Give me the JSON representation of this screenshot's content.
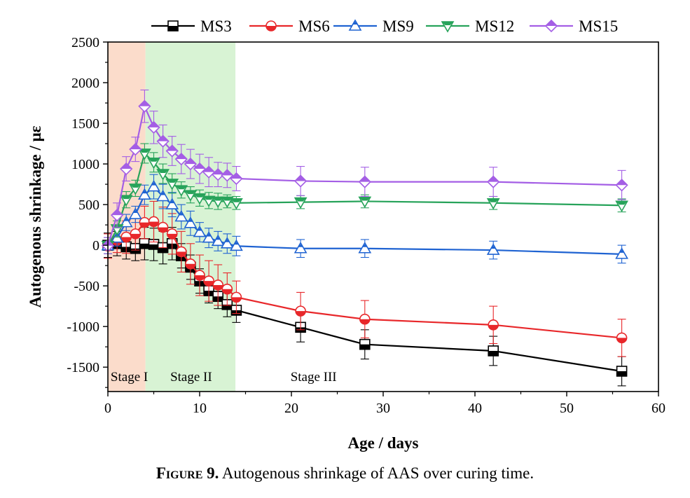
{
  "caption": {
    "label": "Figure 9.",
    "text": "Autogenous shrinkage of AAS over curing time."
  },
  "chart_data": {
    "type": "line",
    "xlabel": "Age / days",
    "ylabel": "Autogenous shrinkage / με",
    "xlim": [
      0,
      60
    ],
    "ylim": [
      -1800,
      2500
    ],
    "xticks": [
      0,
      10,
      20,
      30,
      40,
      50,
      60
    ],
    "yticks": [
      -1500,
      -1000,
      -500,
      0,
      500,
      1000,
      1500,
      2000,
      2500
    ],
    "grid": false,
    "legend_position": "top",
    "stages": [
      {
        "label": "Stage I",
        "x_range": [
          0,
          4.1
        ],
        "color": "#fbdccb"
      },
      {
        "label": "Stage II",
        "x_range": [
          4.1,
          13.9
        ],
        "color": "#d8f3d4"
      },
      {
        "label": "Stage III",
        "x_range": [
          13.9,
          60
        ],
        "color": "none"
      }
    ],
    "x": [
      0,
      1,
      2,
      3,
      4,
      5,
      6,
      7,
      8,
      9,
      10,
      11,
      12,
      13,
      14,
      21,
      28,
      42,
      56
    ],
    "series": [
      {
        "name": "MS3",
        "color": "#000000",
        "marker": "square",
        "values": [
          0,
          20,
          -20,
          -40,
          20,
          10,
          -30,
          20,
          -130,
          -270,
          -440,
          -560,
          -630,
          -730,
          -800,
          -1010,
          -1220,
          -1300,
          -1550
        ],
        "errors": [
          150,
          150,
          150,
          150,
          200,
          200,
          200,
          200,
          150,
          150,
          150,
          150,
          150,
          150,
          150,
          180,
          180,
          180,
          180
        ]
      },
      {
        "name": "MS6",
        "color": "#e8272a",
        "marker": "circle",
        "values": [
          -10,
          60,
          100,
          140,
          280,
          290,
          220,
          140,
          -80,
          -230,
          -370,
          -440,
          -490,
          -540,
          -640,
          -810,
          -910,
          -980,
          -1140
        ],
        "errors": [
          150,
          150,
          200,
          200,
          200,
          250,
          250,
          250,
          250,
          250,
          250,
          250,
          250,
          200,
          200,
          230,
          230,
          230,
          230
        ]
      },
      {
        "name": "MS9",
        "color": "#1f63d2",
        "marker": "triangle-up",
        "values": [
          -5,
          90,
          280,
          380,
          620,
          720,
          600,
          500,
          350,
          270,
          160,
          90,
          50,
          20,
          -10,
          -40,
          -40,
          -60,
          -110
        ],
        "errors": [
          100,
          100,
          100,
          100,
          120,
          150,
          150,
          150,
          150,
          150,
          120,
          120,
          120,
          120,
          120,
          110,
          110,
          110,
          110
        ]
      },
      {
        "name": "MS12",
        "color": "#27a35a",
        "marker": "triangle-down",
        "values": [
          -5,
          200,
          560,
          700,
          1130,
          1020,
          880,
          760,
          680,
          620,
          580,
          550,
          540,
          540,
          520,
          530,
          540,
          520,
          490
        ],
        "errors": [
          100,
          100,
          100,
          100,
          120,
          120,
          120,
          120,
          100,
          100,
          100,
          100,
          100,
          80,
          80,
          80,
          80,
          80,
          80
        ]
      },
      {
        "name": "MS15",
        "color": "#a45ee5",
        "marker": "diamond",
        "values": [
          -5,
          370,
          940,
          1180,
          1710,
          1450,
          1280,
          1160,
          1060,
          1000,
          940,
          900,
          870,
          860,
          820,
          790,
          780,
          780,
          740
        ],
        "errors": [
          100,
          150,
          150,
          150,
          200,
          200,
          200,
          180,
          180,
          180,
          180,
          180,
          150,
          150,
          150,
          180,
          180,
          180,
          180
        ]
      }
    ]
  }
}
